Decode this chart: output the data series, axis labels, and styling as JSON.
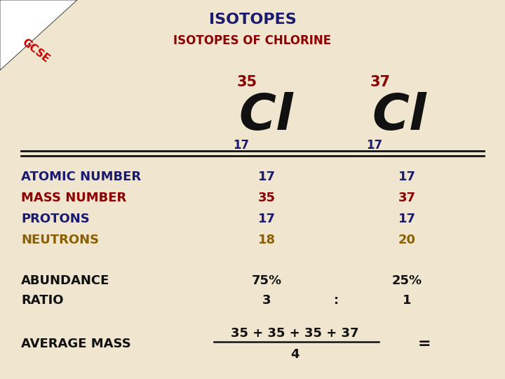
{
  "bg_color": "#f0e6d0",
  "title": "ISOTOPES",
  "title_color": "#1a1a6e",
  "subtitle": "ISOTOPES OF CHLORINE",
  "subtitle_color": "#8b0000",
  "isotope1_mass": "35",
  "isotope1_atomic": "17",
  "isotope2_mass": "37",
  "isotope2_atomic": "17",
  "cl_symbol": "Cl",
  "cl_color": "#111111",
  "mass_color": "#8b0000",
  "atomic_color": "#1a1a6e",
  "row_labels": [
    "ATOMIC NUMBER",
    "MASS NUMBER",
    "PROTONS",
    "NEUTRONS"
  ],
  "row_label_colors": [
    "#1a1a6e",
    "#8b0000",
    "#1a1a6e",
    "#8b6000"
  ],
  "iso1_values": [
    "17",
    "35",
    "17",
    "18"
  ],
  "iso2_values": [
    "17",
    "37",
    "17",
    "20"
  ],
  "iso1_value_colors": [
    "#1a1a6e",
    "#8b0000",
    "#1a1a6e",
    "#8b6000"
  ],
  "iso2_value_colors": [
    "#1a1a6e",
    "#8b0000",
    "#1a1a6e",
    "#8b6000"
  ],
  "abundance_label": "ABUNDANCE",
  "ratio_label": "RATIO",
  "abundance1": "75%",
  "abundance2": "25%",
  "ratio1": "3",
  "ratio_sep": ":",
  "ratio2": "1",
  "avg_mass_label": "AVERAGE MASS",
  "avg_mass_formula_num": "35 + 35 + 35 + 37",
  "avg_mass_formula_den": "4",
  "avg_mass_equals": "=",
  "label_color": "#111111",
  "line_color": "#111111",
  "gcse_text_color": "#cc0000",
  "gcse_bg_color": "#ffffff"
}
